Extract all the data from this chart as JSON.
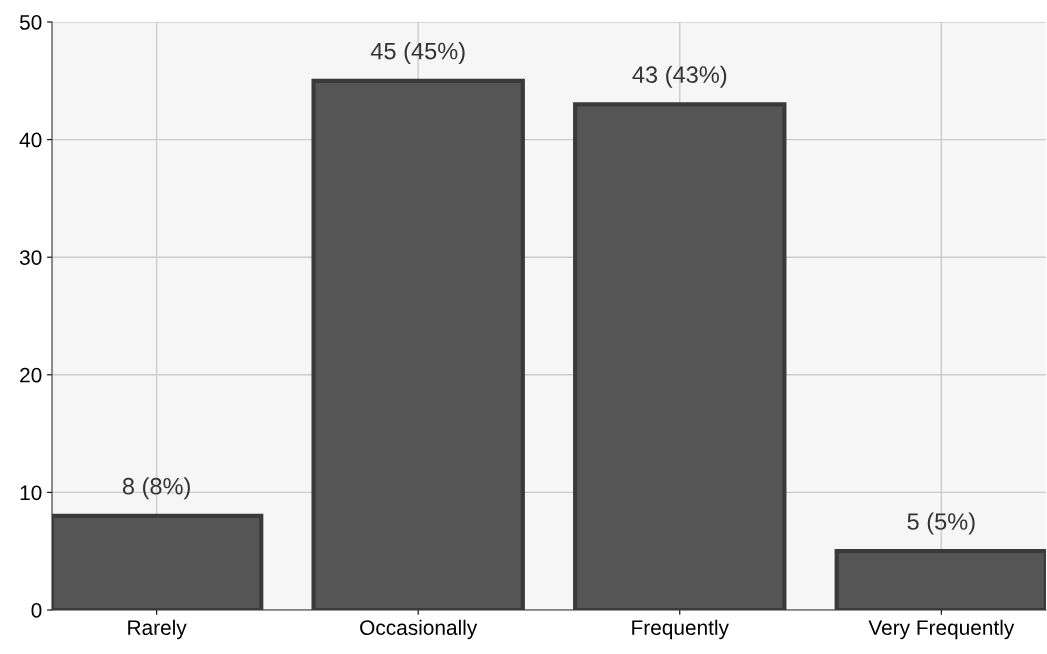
{
  "chart_data": {
    "type": "bar",
    "categories": [
      "Rarely",
      "Occasionally",
      "Frequently",
      "Very Frequently"
    ],
    "values": [
      8,
      45,
      43,
      5
    ],
    "value_labels": [
      "8 (8%)",
      "45 (45%)",
      "43 (43%)",
      "5 (5%)"
    ],
    "color": "#555555",
    "ylim": [
      0,
      50
    ],
    "yticks": [
      0,
      10,
      20,
      30,
      40,
      50
    ],
    "grid": true
  }
}
